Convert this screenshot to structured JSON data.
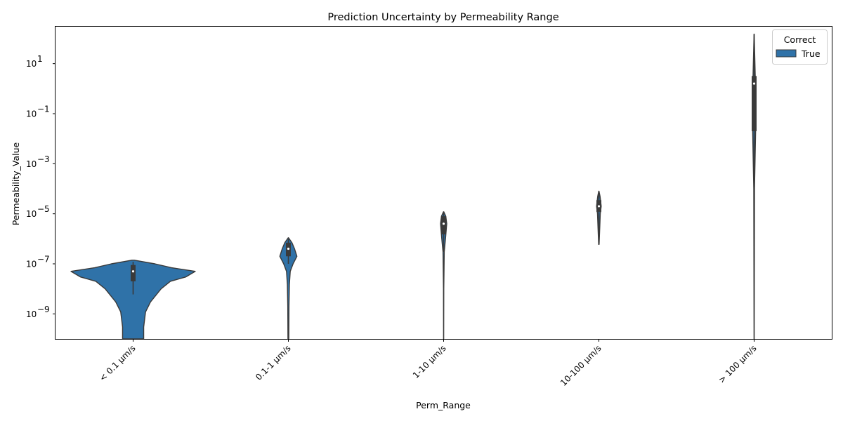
{
  "chart_data": {
    "type": "violin",
    "title": "Prediction Uncertainty by Permeability Range",
    "xlabel": "Perm_Range",
    "ylabel": "Permeability_Value",
    "y_scale": "log",
    "ylim": [
      1e-10,
      300.0
    ],
    "y_ticks": [
      {
        "value": 1e-09,
        "base": "10",
        "exp": "−9"
      },
      {
        "value": 1e-07,
        "base": "10",
        "exp": "−7"
      },
      {
        "value": 1e-05,
        "base": "10",
        "exp": "−5"
      },
      {
        "value": 0.001,
        "base": "10",
        "exp": "−3"
      },
      {
        "value": 0.1,
        "base": "10",
        "exp": "−1"
      },
      {
        "value": 10,
        "base": "10",
        "exp": "1"
      }
    ],
    "categories": [
      "< 0.1 µm/s",
      "0.1-1 µm/s",
      "1-10 µm/s",
      "10-100 µm/s",
      "> 100 µm/s"
    ],
    "legend": {
      "title": "Correct",
      "entries": [
        {
          "label": "True",
          "color": "#2f72a8"
        }
      ],
      "placement": "top-right"
    },
    "grid": false,
    "series": [
      {
        "name": "True",
        "color": "#2f72a8",
        "violins": [
          {
            "category": "< 0.1 µm/s",
            "max_half_width_fraction": 0.4,
            "density": [
              [
                1e-10,
                0.17
              ],
              [
                3e-10,
                0.17
              ],
              [
                1.2e-09,
                0.2
              ],
              [
                3e-09,
                0.28
              ],
              [
                1e-08,
                0.45
              ],
              [
                2e-08,
                0.6
              ],
              [
                3e-08,
                0.85
              ],
              [
                5e-08,
                1.0
              ],
              [
                7e-08,
                0.62
              ],
              [
                1e-07,
                0.35
              ],
              [
                1.4e-07,
                0.02
              ]
            ],
            "box": {
              "whisker_low": 6e-09,
              "q1": 2e-08,
              "median": 5e-08,
              "q3": 9e-08,
              "whisker_high": 1.2e-07
            }
          },
          {
            "category": "0.1-1 µm/s",
            "max_half_width_fraction": 0.055,
            "density": [
              [
                1e-10,
                0.05
              ],
              [
                2e-09,
                0.07
              ],
              [
                1.5e-08,
                0.12
              ],
              [
                5e-08,
                0.22
              ],
              [
                1e-07,
                0.55
              ],
              [
                2e-07,
                1.0
              ],
              [
                4e-07,
                0.72
              ],
              [
                7e-07,
                0.42
              ],
              [
                1.1e-06,
                0.02
              ]
            ],
            "box": {
              "whisker_low": 1e-07,
              "q1": 2e-07,
              "median": 4e-07,
              "q3": 7e-07,
              "whisker_high": 1e-06
            }
          },
          {
            "category": "1-10 µm/s",
            "max_half_width_fraction": 0.02,
            "density": [
              [
                1e-10,
                0.02
              ],
              [
                1e-08,
                0.05
              ],
              [
                3e-07,
                0.2
              ],
              [
                1e-06,
                0.6
              ],
              [
                4e-06,
                1.0
              ],
              [
                8e-06,
                0.7
              ],
              [
                1.2e-05,
                0.05
              ]
            ],
            "box": {
              "whisker_low": 3e-07,
              "q1": 1.5e-06,
              "median": 4e-06,
              "q3": 8e-06,
              "whisker_high": 1.2e-05
            }
          },
          {
            "category": "10-100 µm/s",
            "max_half_width_fraction": 0.015,
            "density": [
              [
                6e-07,
                0.1
              ],
              [
                1e-05,
                0.6
              ],
              [
                2e-05,
                1.0
              ],
              [
                5e-05,
                0.5
              ],
              [
                8e-05,
                0.05
              ]
            ],
            "box": {
              "whisker_low": 6e-07,
              "q1": 1.2e-05,
              "median": 2e-05,
              "q3": 3.5e-05,
              "whisker_high": 8e-05
            }
          },
          {
            "category": "> 100 µm/s",
            "max_half_width_fraction": 0.012,
            "density": [
              [
                1e-10,
                0.05
              ],
              [
                0.0001,
                0.2
              ],
              [
                0.02,
                0.8
              ],
              [
                1.5,
                1.0
              ],
              [
                3,
                0.6
              ],
              [
                150,
                0.05
              ]
            ],
            "box": {
              "whisker_low": 0.0001,
              "q1": 0.02,
              "median": 1.6,
              "q3": 3.2,
              "whisker_high": 150
            }
          }
        ]
      }
    ]
  }
}
